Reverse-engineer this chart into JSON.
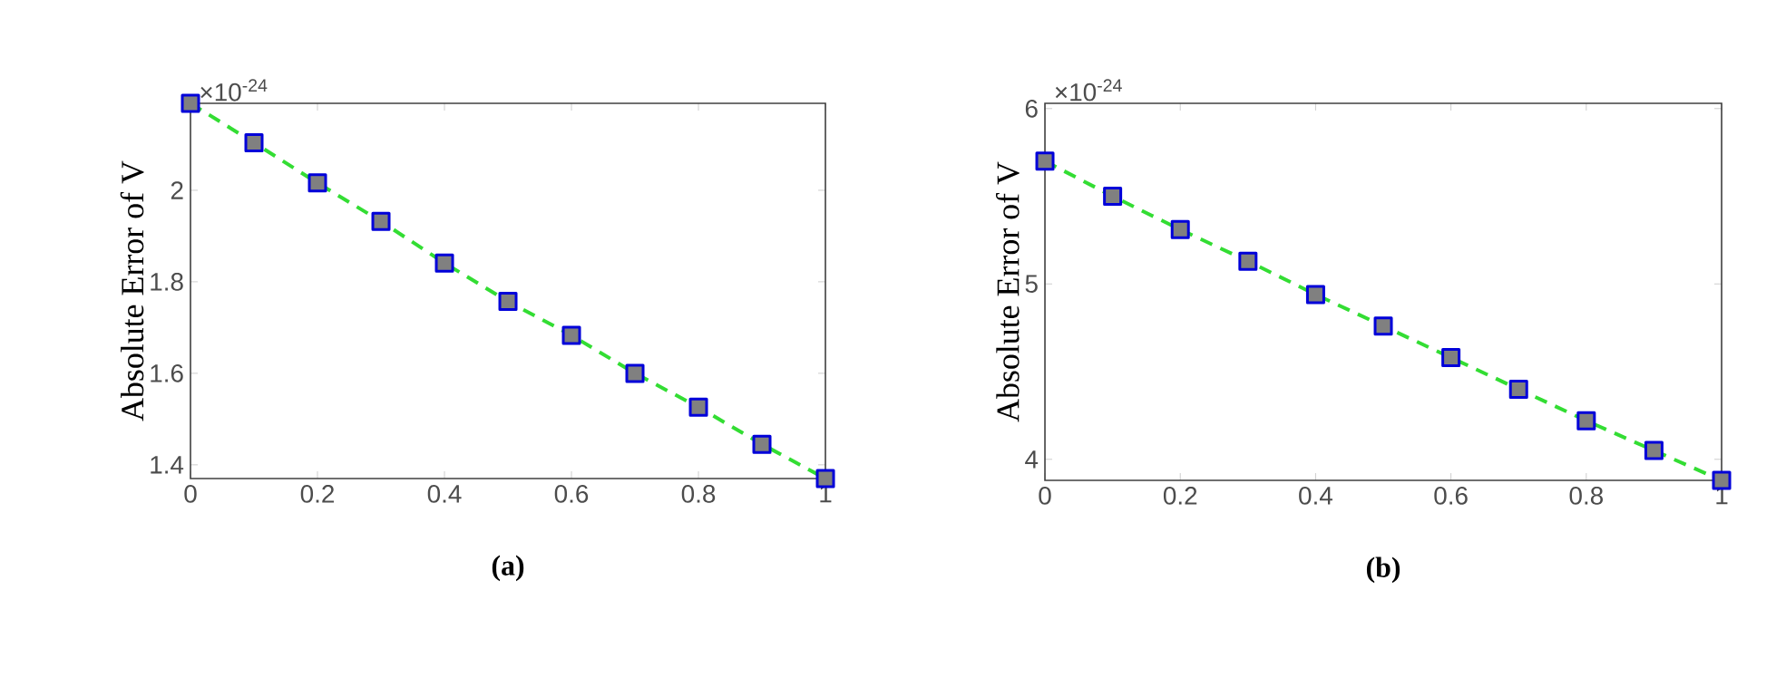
{
  "chart_data": [
    {
      "type": "line",
      "xlabel": "(a)",
      "ylabel": "Absolute Error of V",
      "annotations": [
        "×10$^{-24}$"
      ],
      "x": [
        0,
        0.1,
        0.2,
        0.3,
        0.4,
        0.5,
        0.6,
        0.7,
        0.8,
        0.9,
        1
      ],
      "series": [
        {
          "color": "#33dd33",
          "values": [
            2.19,
            2.104,
            2.016,
            1.932,
            1.841,
            1.757,
            1.683,
            1.6,
            1.526,
            1.445,
            1.37
          ]
        }
      ],
      "xlim": [
        0,
        1
      ],
      "ylim": [
        1.37,
        2.19
      ],
      "xticks": [
        0,
        0.2,
        0.4,
        0.6,
        0.8,
        1
      ],
      "yticks": [
        1.4,
        1.6,
        1.8,
        2
      ],
      "marker": "square",
      "line_style": "dashed",
      "grid": false
    },
    {
      "type": "line",
      "xlabel": "(b)",
      "ylabel": "Absolute Error of V",
      "annotations": [
        "×10$^{-24}$"
      ],
      "x": [
        0,
        0.1,
        0.2,
        0.3,
        0.4,
        0.5,
        0.6,
        0.7,
        0.8,
        0.9,
        1
      ],
      "series": [
        {
          "color": "#33dd33",
          "values": [
            5.7,
            5.5,
            5.31,
            5.13,
            4.94,
            4.76,
            4.58,
            4.4,
            4.22,
            4.05,
            3.88
          ]
        }
      ],
      "xlim": [
        0,
        1
      ],
      "ylim": [
        3.88,
        6.03
      ],
      "xticks": [
        0,
        0.2,
        0.4,
        0.6,
        0.8,
        1
      ],
      "yticks": [
        4,
        5,
        6
      ],
      "marker": "square",
      "line_style": "dashed",
      "grid": false
    }
  ]
}
